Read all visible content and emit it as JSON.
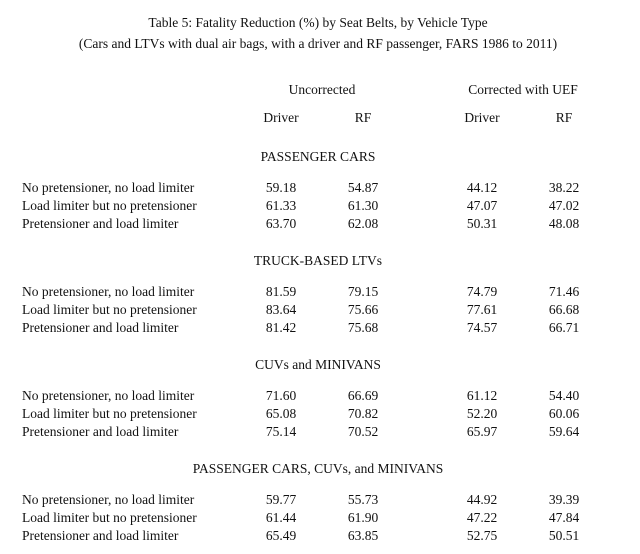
{
  "title": {
    "line1": "Table 5: Fatality Reduction (%) by Seat Belts, by Vehicle Type",
    "line2": "(Cars and LTVs with dual air bags, with a driver and RF passenger, FARS 1986 to 2011)"
  },
  "columns": {
    "group_uncorrected": "Uncorrected",
    "group_corrected": "Corrected with UEF",
    "sub": [
      "Driver",
      "RF",
      "Driver",
      "RF"
    ]
  },
  "colors": {
    "text": "#111111",
    "background": "#ffffff"
  },
  "sections": [
    {
      "heading": "PASSENGER CARS",
      "rows": [
        {
          "label": "No pretensioner, no load limiter",
          "values": [
            "59.18",
            "54.87",
            "44.12",
            "38.22"
          ]
        },
        {
          "label": "Load limiter but no pretensioner",
          "values": [
            "61.33",
            "61.30",
            "47.07",
            "47.02"
          ]
        },
        {
          "label": "Pretensioner and load limiter",
          "values": [
            "63.70",
            "62.08",
            "50.31",
            "48.08"
          ]
        }
      ]
    },
    {
      "heading": "TRUCK-BASED LTVs",
      "rows": [
        {
          "label": "No pretensioner, no load limiter",
          "values": [
            "81.59",
            "79.15",
            "74.79",
            "71.46"
          ]
        },
        {
          "label": "Load limiter but no pretensioner",
          "values": [
            "83.64",
            "75.66",
            "77.61",
            "66.68"
          ]
        },
        {
          "label": "Pretensioner and load limiter",
          "values": [
            "81.42",
            "75.68",
            "74.57",
            "66.71"
          ]
        }
      ]
    },
    {
      "heading": "CUVs and MINIVANS",
      "rows": [
        {
          "label": "No pretensioner, no load limiter",
          "values": [
            "71.60",
            "66.69",
            "61.12",
            "54.40"
          ]
        },
        {
          "label": "Load limiter but no pretensioner",
          "values": [
            "65.08",
            "70.82",
            "52.20",
            "60.06"
          ]
        },
        {
          "label": "Pretensioner and load limiter",
          "values": [
            "75.14",
            "70.52",
            "65.97",
            "59.64"
          ]
        }
      ]
    },
    {
      "heading": "PASSENGER CARS, CUVs, and MINIVANS",
      "rows": [
        {
          "label": "No pretensioner, no load limiter",
          "values": [
            "59.77",
            "55.73",
            "44.92",
            "39.39"
          ]
        },
        {
          "label": "Load limiter but no pretensioner",
          "values": [
            "61.44",
            "61.90",
            "47.22",
            "47.84"
          ]
        },
        {
          "label": "Pretensioner and load limiter",
          "values": [
            "65.49",
            "63.85",
            "52.75",
            "50.51"
          ]
        }
      ]
    }
  ]
}
